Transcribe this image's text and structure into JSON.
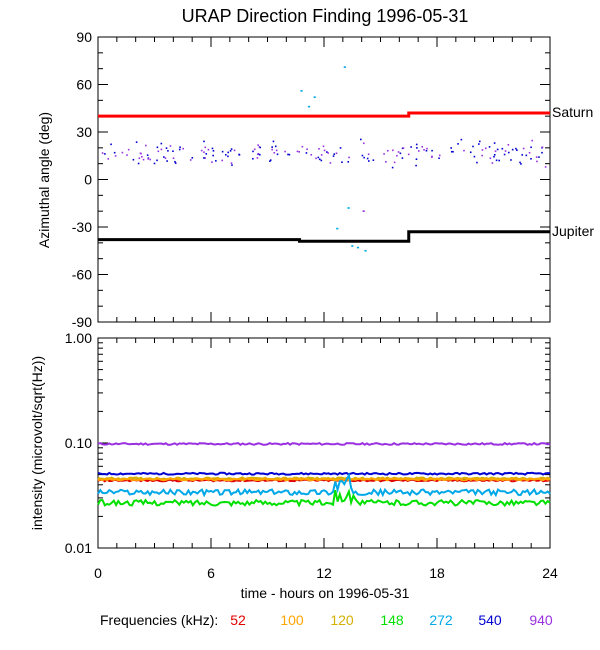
{
  "title": "URAP Direction Finding  1996-05-31",
  "xlabel": "time - hours on 1996-05-31",
  "freq_label": "Frequencies (kHz):",
  "frequencies": [
    {
      "label": "52",
      "color": "#e00000"
    },
    {
      "label": "100",
      "color": "#ffa500"
    },
    {
      "label": "120",
      "color": "#d4b000"
    },
    {
      "label": "148",
      "color": "#00e000"
    },
    {
      "label": "272",
      "color": "#00a8e8"
    },
    {
      "label": "540",
      "color": "#0000d0"
    },
    {
      "label": "940",
      "color": "#9a30e0"
    }
  ],
  "chart_data": [
    {
      "type": "scatter",
      "ylabel": "Azimuthal angle (deg)",
      "xlim": [
        0,
        24
      ],
      "ylim": [
        -90,
        90
      ],
      "xticks": [
        "0",
        "6",
        "12",
        "18",
        "24"
      ],
      "yticks": [
        "90",
        "60",
        "30",
        "0",
        "-30",
        "-60",
        "-90"
      ],
      "reference_lines": [
        {
          "name": "Saturn",
          "color": "#ff0000",
          "segments": [
            [
              0,
              16.5,
              40
            ],
            [
              16.5,
              24,
              42
            ]
          ]
        },
        {
          "name": "Jupiter",
          "color": "#000000",
          "segments": [
            [
              0,
              10.7,
              -38
            ],
            [
              10.7,
              16.5,
              -39
            ],
            [
              16.5,
              24,
              -33
            ]
          ]
        }
      ],
      "outliers": [
        {
          "x": 10.8,
          "y": 56,
          "color": "#00a8e8"
        },
        {
          "x": 11.5,
          "y": 52,
          "color": "#00a8e8"
        },
        {
          "x": 11.2,
          "y": 46,
          "color": "#00a8e8"
        },
        {
          "x": 13.1,
          "y": 71,
          "color": "#00a8e8"
        },
        {
          "x": 13.3,
          "y": -18,
          "color": "#00a8e8"
        },
        {
          "x": 14.1,
          "y": -20,
          "color": "#9a30e0"
        },
        {
          "x": 13.5,
          "y": -42,
          "color": "#00a8e8"
        },
        {
          "x": 13.8,
          "y": -43,
          "color": "#00a8e8"
        },
        {
          "x": 14.2,
          "y": -45,
          "color": "#00a8e8"
        },
        {
          "x": 12.7,
          "y": -31,
          "color": "#00a8e8"
        }
      ],
      "scatter_band": {
        "center_deg": 17,
        "spread_deg": 11,
        "colors": [
          "#0000d0",
          "#9a30e0"
        ]
      }
    },
    {
      "type": "line",
      "ylabel": "intensity (microvolt/sqrt(Hz))",
      "scale": "log",
      "xlim": [
        0,
        24
      ],
      "ylim": [
        0.01,
        1.0
      ],
      "xticks": [
        "0",
        "6",
        "12",
        "18",
        "24"
      ],
      "yticks": [
        "1.00",
        "0.10",
        "0.01"
      ],
      "series": [
        {
          "name": "940",
          "color": "#9a30e0",
          "level": 0.098
        },
        {
          "name": "540",
          "color": "#0000d0",
          "level": 0.051
        },
        {
          "name": "52",
          "color": "#e00000",
          "level": 0.044
        },
        {
          "name": "120",
          "color": "#d4b000",
          "level": 0.046
        },
        {
          "name": "100",
          "color": "#ffa500",
          "level": 0.045
        },
        {
          "name": "272",
          "color": "#00a8e8",
          "level": 0.034
        },
        {
          "name": "148",
          "color": "#00e000",
          "level": 0.027
        }
      ],
      "hline": 0.045
    }
  ]
}
